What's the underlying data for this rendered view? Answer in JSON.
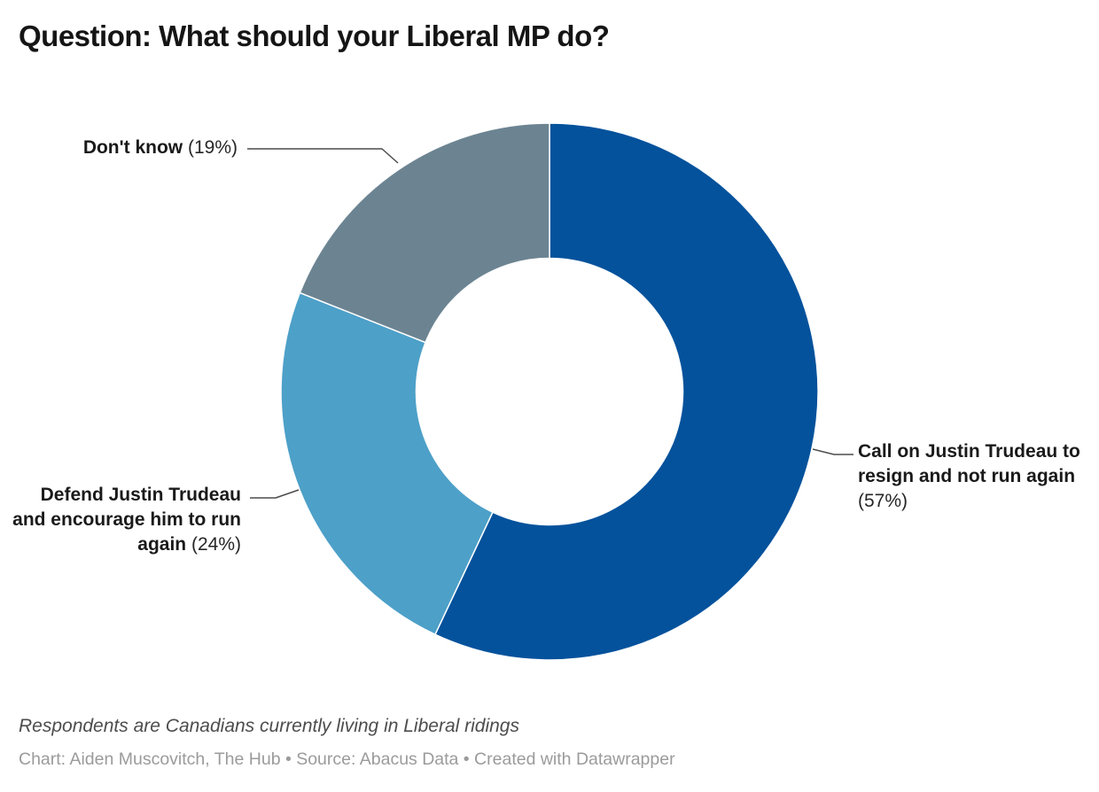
{
  "title": "Question: What should your Liberal MP do?",
  "chart_data": {
    "type": "pie",
    "subtype": "donut",
    "title": "Question: What should your Liberal MP do?",
    "categories": [
      "Call on Justin Trudeau to resign and not run again",
      "Defend Justin Trudeau and encourage him to run again",
      "Don't know"
    ],
    "values": [
      57,
      24,
      19
    ],
    "unit": "%",
    "start_angle_deg": 0,
    "direction": "clockwise",
    "inner_radius_ratio": 0.5,
    "slice_border_color": "#ffffff",
    "connector_color": "#4c4c4c",
    "slices": [
      {
        "label": "Call on Justin Trudeau to resign and not run again",
        "value": 57,
        "pct_text": "(57%)",
        "color": "#04529c"
      },
      {
        "label": "Defend Justin Trudeau and encourage him to run again",
        "value": 24,
        "pct_text": "(24%)",
        "color": "#4da0c8"
      },
      {
        "label": "Don't know",
        "value": 19,
        "pct_text": "(19%)",
        "color": "#6c8492"
      }
    ]
  },
  "notes": {
    "description": "Respondents are Canadians currently living in Liberal ridings",
    "byline": "Chart: Aiden Muscovitch, The Hub • Source: Abacus Data • Created with Datawrapper"
  }
}
